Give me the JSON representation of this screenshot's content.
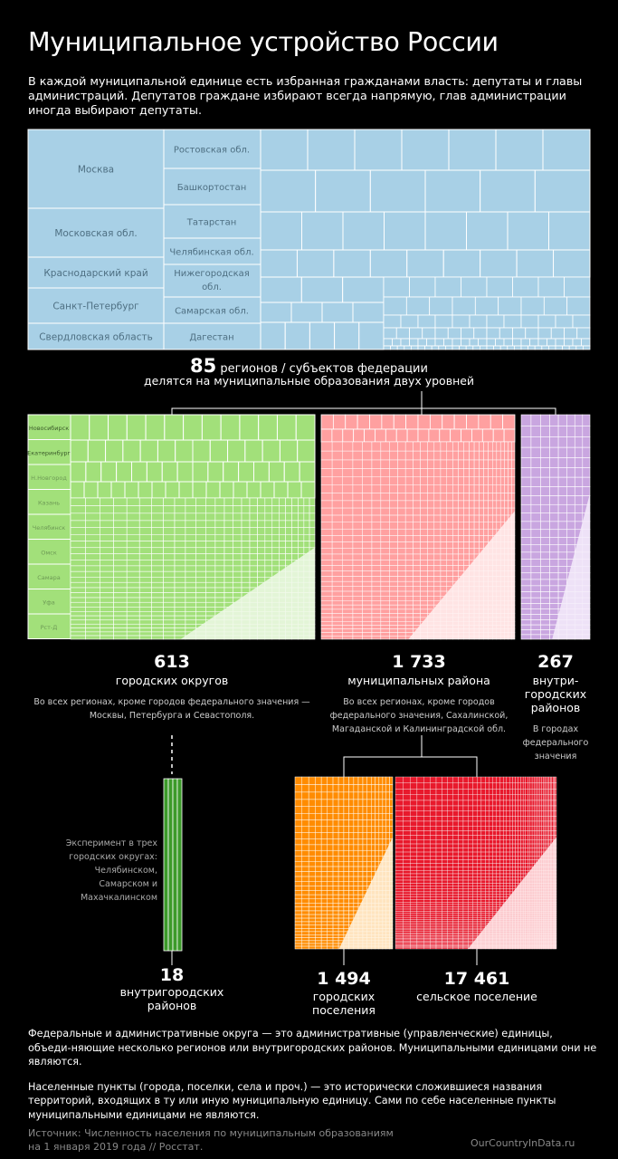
{
  "title": "Муниципальное устройство России",
  "intro": "В каждой муниципальной единице есть избранная гражданами власть: депутаты и главы администраций. Депутатов граждане избирают всегда напрямую, глав администрации иногда выбирают депутаты.",
  "regions_treemap": {
    "color": "#a8d0e6",
    "labels": [
      "Москва",
      "Московская обл.",
      "Краснодарский край",
      "Санкт-Петербург",
      "Свердловская область",
      "Ростовская обл.",
      "Башкортостан",
      "Татарстан",
      "Челябинская обл.",
      "Нижегородская обл.",
      "Самарская обл.",
      "Дагестан"
    ]
  },
  "regions": {
    "count": "85",
    "label": "регионов / субъектов федерации",
    "sub": "делятся на муниципальные образования двух уровней"
  },
  "city_districts": {
    "count": "613",
    "label": "городских округов",
    "color": "#a2e07a",
    "note": "Во всех регионах, кроме городов федерального значения — Москвы, Петербурга и Севастополя.",
    "labels": [
      "Новосибирск",
      "Екатеринбург",
      "Н.Новгород",
      "Казань",
      "Челябинск",
      "Омск",
      "Самара",
      "Уфа",
      "Рст-Д"
    ]
  },
  "municipal_districts": {
    "count": "1 733",
    "label": "муниципальных района",
    "color": "#ffa0a0",
    "note": "Во всех регионах, кроме городов федерального значения, Сахалинской, Магаданской и Калининградской обл."
  },
  "intracity_federal": {
    "count": "267",
    "label": "внутри-городских районов",
    "color": "#c9a6e0",
    "note": "В городах федерального значения"
  },
  "intracity_experiment": {
    "count": "18",
    "label": "внутригородских районов",
    "color": "#3c9a2a",
    "note": "Эксперимент в трех городских округах: Челябинском, Самарском и Махачкалинском"
  },
  "urban_settlements": {
    "count": "1 494",
    "label": "городских поселения",
    "color": "#ff8c00"
  },
  "rural_settlements": {
    "count": "17 461",
    "label": "сельское поселение",
    "color": "#e8192c"
  },
  "footer": [
    "Федеральные и административные округа — это административные (управленческие) единицы, объеди-няющие несколько регионов или внутригородских районов. Муниципальными единицами они не являются.",
    "Населенные пункты (города, поселки, села и проч.) — это исторически сложившиеся названия территорий, входящих в ту или иную муниципальную единицу. Сами по себе населенные пункты муниципальными единицами не являются."
  ],
  "source": "Источник: Численность населения по муниципальным образованиям на 1 января 2019 года // Росстат.",
  "site": "OurCountryInData.ru"
}
